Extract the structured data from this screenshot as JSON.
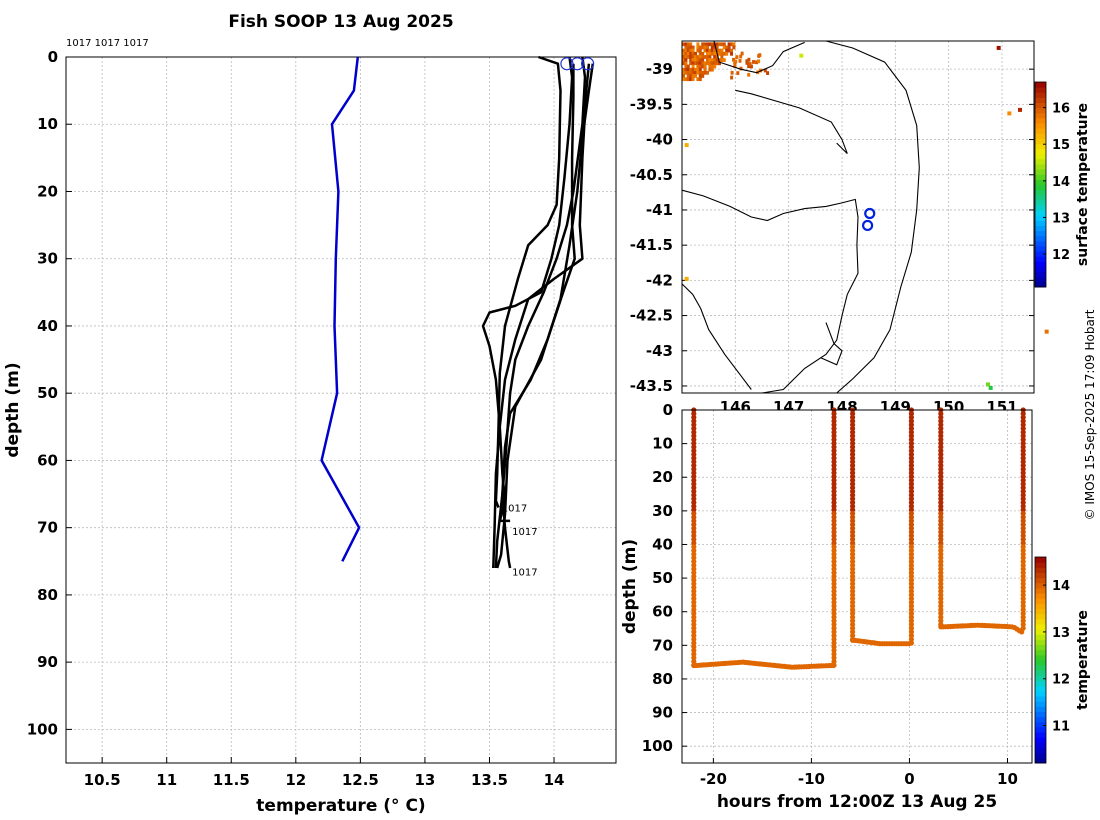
{
  "figure": {
    "title": "Fish SOOP 13 Aug 2025",
    "credit": "© IMOS 15-Sep-2025 17:09 Hobart"
  },
  "chart_data": [
    {
      "id": "profile",
      "type": "line",
      "title": "Fish SOOP 13 Aug 2025",
      "xlabel": "temperature (° C)",
      "ylabel": "depth (m)",
      "xlim": [
        10.22,
        14.48
      ],
      "ylim": [
        105,
        0
      ],
      "xticks": [
        10.5,
        11,
        11.5,
        12,
        12.5,
        13,
        13.5,
        14
      ],
      "yticks": [
        0,
        10,
        20,
        30,
        40,
        50,
        60,
        70,
        80,
        90,
        100
      ],
      "grid": true,
      "top_labels": "1017 1017 1017",
      "reference_profile": {
        "color": "#0000cc",
        "points": [
          [
            12.48,
            0
          ],
          [
            12.45,
            5
          ],
          [
            12.28,
            10
          ],
          [
            12.33,
            20
          ],
          [
            12.31,
            30
          ],
          [
            12.3,
            40
          ],
          [
            12.32,
            50
          ],
          [
            12.2,
            60
          ],
          [
            12.49,
            70
          ],
          [
            12.36,
            75
          ]
        ]
      },
      "profiles": [
        {
          "label": "1017",
          "points": [
            [
              13.88,
              0
            ],
            [
              14.03,
              1
            ],
            [
              14.05,
              5
            ],
            [
              14.04,
              15
            ],
            [
              14.02,
              22
            ],
            [
              13.95,
              25
            ],
            [
              13.8,
              28
            ],
            [
              13.72,
              33
            ],
            [
              13.62,
              40
            ],
            [
              13.58,
              47
            ],
            [
              13.57,
              55
            ],
            [
              13.56,
              62
            ],
            [
              13.55,
              66
            ],
            [
              13.57,
              67
            ]
          ]
        },
        {
          "label": "1017",
          "points": [
            [
              14.12,
              0
            ],
            [
              14.14,
              3
            ],
            [
              14.12,
              10
            ],
            [
              14.08,
              18
            ],
            [
              14.04,
              25
            ],
            [
              13.98,
              30
            ],
            [
              13.9,
              35
            ],
            [
              13.7,
              37
            ],
            [
              13.5,
              38
            ],
            [
              13.45,
              40
            ],
            [
              13.5,
              43
            ],
            [
              13.55,
              48
            ],
            [
              13.58,
              55
            ],
            [
              13.6,
              62
            ],
            [
              13.62,
              66
            ],
            [
              13.58,
              69
            ],
            [
              13.66,
              69
            ]
          ]
        },
        {
          "label": "1017",
          "points": [
            [
              14.22,
              0
            ],
            [
              14.24,
              3
            ],
            [
              14.22,
              10
            ],
            [
              14.15,
              20
            ],
            [
              14.1,
              25
            ],
            [
              14.02,
              30
            ],
            [
              13.92,
              35
            ],
            [
              13.8,
              40
            ],
            [
              13.7,
              45
            ],
            [
              13.66,
              50
            ],
            [
              13.63,
              58
            ],
            [
              13.6,
              65
            ],
            [
              13.62,
              70
            ],
            [
              13.65,
              75
            ],
            [
              13.66,
              76
            ]
          ]
        },
        {
          "label": "",
          "points": [
            [
              14.27,
              1
            ],
            [
              14.25,
              5
            ],
            [
              14.22,
              15
            ],
            [
              14.2,
              25
            ],
            [
              14.22,
              30
            ],
            [
              14.0,
              33
            ],
            [
              13.8,
              36
            ],
            [
              13.7,
              42
            ],
            [
              13.62,
              48
            ],
            [
              13.58,
              55
            ],
            [
              13.55,
              62
            ],
            [
              13.54,
              70
            ],
            [
              13.53,
              76
            ]
          ]
        },
        {
          "label": "",
          "points": [
            [
              14.15,
              1
            ],
            [
              14.15,
              6
            ],
            [
              14.14,
              15
            ],
            [
              14.14,
              25
            ],
            [
              14.16,
              30
            ],
            [
              14.07,
              35
            ],
            [
              13.95,
              42
            ],
            [
              13.82,
              48
            ],
            [
              13.66,
              53
            ],
            [
              13.62,
              58
            ],
            [
              13.6,
              65
            ],
            [
              13.56,
              72
            ],
            [
              13.55,
              76
            ]
          ]
        },
        {
          "label": "",
          "points": [
            [
              14.3,
              1
            ],
            [
              14.27,
              5
            ],
            [
              14.22,
              12
            ],
            [
              14.18,
              20
            ],
            [
              14.12,
              28
            ],
            [
              14.05,
              36
            ],
            [
              13.9,
              45
            ],
            [
              13.7,
              52
            ],
            [
              13.64,
              60
            ],
            [
              13.62,
              68
            ],
            [
              13.59,
              74
            ],
            [
              13.56,
              76
            ]
          ]
        }
      ],
      "end_labels": [
        {
          "text": "1017",
          "t": 13.58,
          "d": 67
        },
        {
          "text": "1017",
          "t": 13.66,
          "d": 70.5
        },
        {
          "text": "1017",
          "t": 13.66,
          "d": 76.5
        }
      ],
      "surface_markers": [
        14.1,
        14.18,
        14.26
      ]
    },
    {
      "id": "map",
      "type": "heatmap",
      "ylabel": "surface temperature",
      "xlim": [
        145.0,
        151.6
      ],
      "ylim": [
        -43.6,
        -38.6
      ],
      "xticks": [
        "146",
        "147",
        "148",
        "149",
        "150",
        "151"
      ],
      "yticks": [
        "-39",
        "-39.5",
        "-40",
        "-40.5",
        "-41",
        "-41.5",
        "-42",
        "-42.5",
        "-43",
        "-43.5"
      ],
      "colorbar": {
        "min": 11.1,
        "max": 16.7,
        "ticks": [
          "12",
          "13",
          "14",
          "15",
          "16"
        ]
      },
      "grid": true,
      "stations": [
        [
          148.52,
          -41.05
        ],
        [
          148.48,
          -41.22
        ]
      ]
    },
    {
      "id": "timeseries",
      "type": "scatter",
      "xlabel": "hours from 12:00Z 13 Aug 25",
      "ylabel": "depth (m)",
      "xlim": [
        -23.2,
        12.5
      ],
      "ylim": [
        105,
        0
      ],
      "xticks": [
        "-20",
        "-10",
        "0",
        "10"
      ],
      "yticks": [
        "0",
        "10",
        "20",
        "30",
        "40",
        "50",
        "60",
        "70",
        "80",
        "90",
        "100"
      ],
      "colorbar": {
        "label": "temperature",
        "min": 10.2,
        "max": 14.6,
        "ticks": [
          "11",
          "12",
          "13",
          "14"
        ]
      },
      "grid": true,
      "tows": [
        {
          "start": -22,
          "end": -7.7,
          "depth": [
            [
              -21.8,
              76
            ],
            [
              -17,
              75
            ],
            [
              -12,
              76.5
            ],
            [
              -8,
              76
            ]
          ]
        },
        {
          "start": -5.8,
          "end": 0.2,
          "depth": [
            [
              -5.6,
              68.5
            ],
            [
              -3,
              69.5
            ],
            [
              0,
              69.5
            ]
          ]
        },
        {
          "start": 3.2,
          "end": 11.6,
          "depth": [
            [
              3.4,
              64.5
            ],
            [
              7,
              64
            ],
            [
              10.6,
              64.5
            ],
            [
              11.4,
              66
            ]
          ]
        }
      ]
    }
  ]
}
